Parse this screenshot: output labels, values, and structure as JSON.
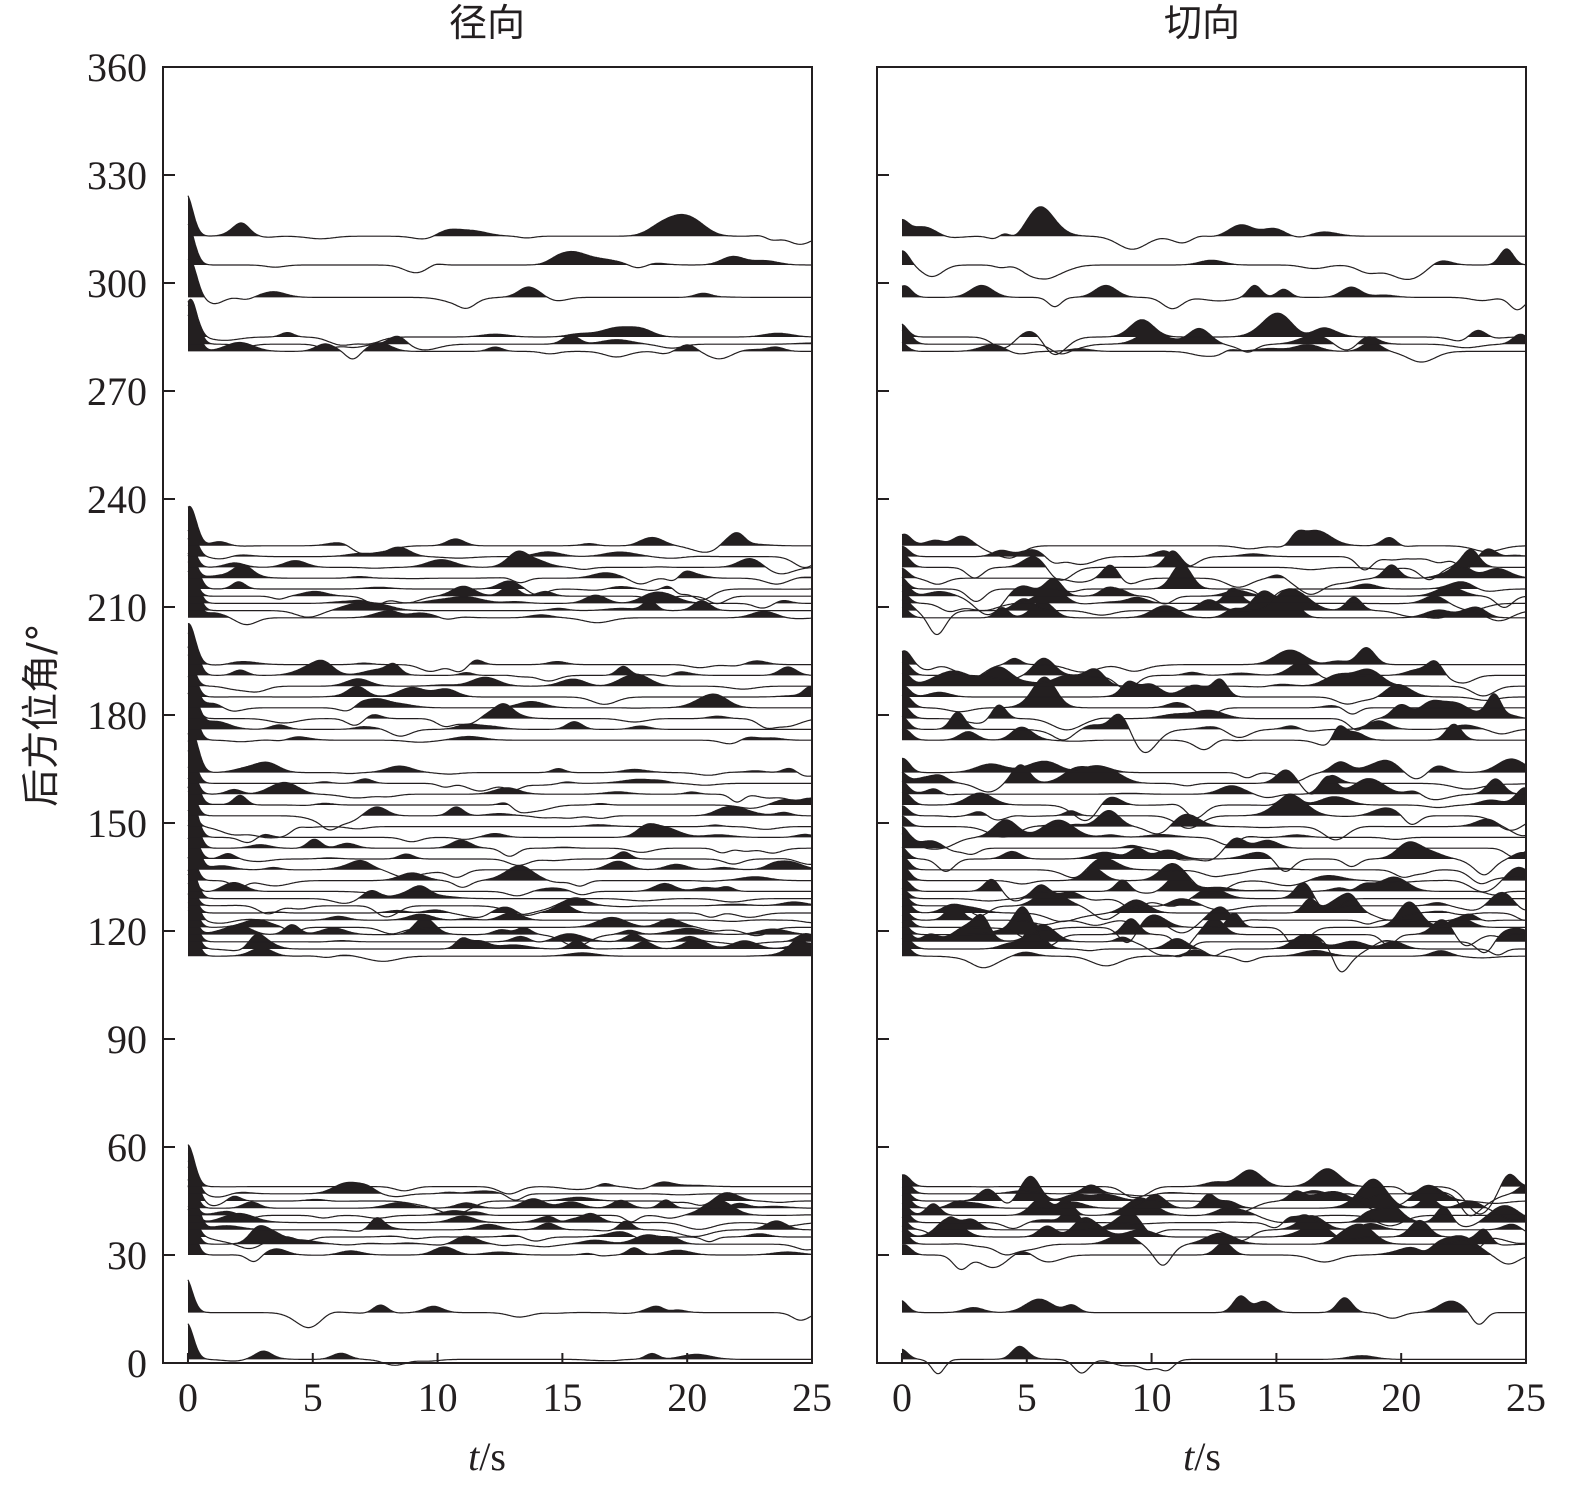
{
  "chart_data": [
    {
      "type": "line",
      "title": "径向",
      "xlabel_var": "t",
      "xlabel_unit": "/s",
      "ylabel": "后方位角/°",
      "xlim": [
        -1,
        25
      ],
      "ylim": [
        0,
        360
      ],
      "x_ticks": [
        0,
        5,
        10,
        15,
        20,
        25
      ],
      "y_ticks": [
        0,
        30,
        60,
        90,
        120,
        150,
        180,
        210,
        240,
        270,
        300,
        330,
        360
      ],
      "trace_baselines": [
        1,
        14,
        30,
        33,
        35,
        37,
        39,
        41,
        43,
        45,
        47,
        49,
        113,
        115,
        117,
        119,
        121,
        123,
        125,
        127,
        129,
        131,
        134,
        137,
        140,
        143,
        146,
        149,
        152,
        155,
        158,
        161,
        164,
        173,
        176,
        179,
        182,
        185,
        188,
        191,
        194,
        207,
        209,
        211,
        213,
        215,
        218,
        221,
        224,
        227,
        281,
        283,
        285,
        296,
        305,
        313
      ],
      "direct_arrival_time": 0,
      "direct_pulse_amplitude": 13
    },
    {
      "type": "line",
      "title": "切向",
      "xlabel_var": "t",
      "xlabel_unit": "/s",
      "xlim": [
        -1,
        25
      ],
      "ylim": [
        0,
        360
      ],
      "x_ticks": [
        0,
        5,
        10,
        15,
        20,
        25
      ],
      "trace_baselines": [
        1,
        14,
        30,
        33,
        35,
        37,
        39,
        41,
        43,
        45,
        47,
        49,
        113,
        115,
        117,
        119,
        121,
        123,
        125,
        127,
        129,
        131,
        134,
        137,
        140,
        143,
        146,
        149,
        152,
        155,
        158,
        161,
        164,
        173,
        176,
        179,
        182,
        185,
        188,
        191,
        194,
        207,
        209,
        211,
        213,
        215,
        218,
        221,
        224,
        227,
        281,
        283,
        285,
        296,
        305,
        313
      ],
      "direct_arrival_time": 0,
      "direct_pulse_amplitude": 4
    }
  ],
  "colors": {
    "ink": "#231f20",
    "fill": "#231f20",
    "background": "#ffffff"
  }
}
